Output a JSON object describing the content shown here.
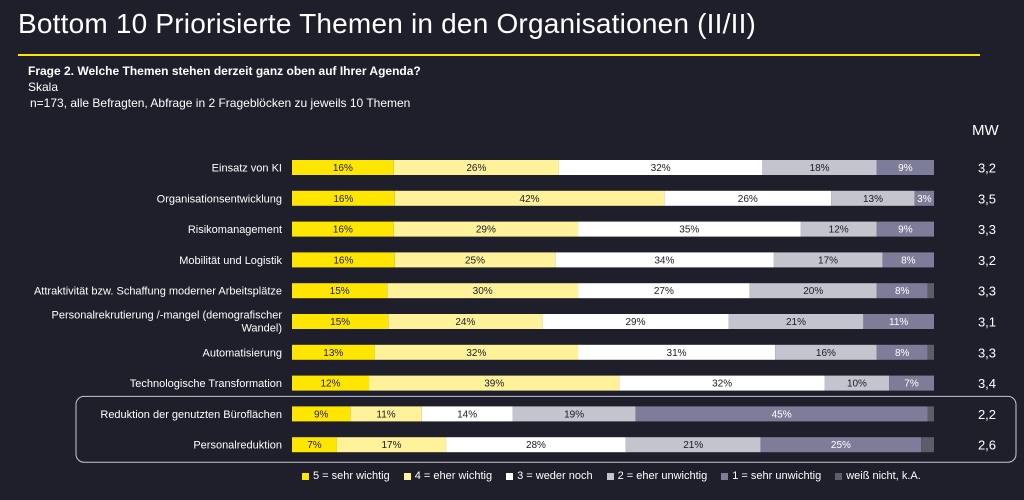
{
  "header": {
    "title": "Bottom 10 Priorisierte Themen in den Organisationen (II/II)",
    "question": "Frage 2. Welche Themen stehen derzeit ganz oben auf Ihrer Agenda?",
    "scale_label": "Skala",
    "sample": "n=173, alle Befragten, Abfrage in 2 Frageblöcken zu jeweils 10 Themen",
    "mw_label": "MW"
  },
  "colors": {
    "background": "#1f1f2b",
    "accent": "#ffe600"
  },
  "chart_data": {
    "type": "bar",
    "orientation": "horizontal-stacked-100",
    "categories": [
      "Einsatz von KI",
      "Organisationsentwicklung",
      "Risikomanagement",
      "Mobilität und Logistik",
      "Attraktivität bzw. Schaffung moderner Arbeitsplätze",
      "Personalrekrutierung /-mangel (demografischer Wandel)",
      "Automatisierung",
      "Technologische Transformation",
      "Reduktion der genutzten Büroflächen",
      "Personalreduktion"
    ],
    "series": [
      {
        "name": "5 = sehr wichtig",
        "color": "#ffe600",
        "text_color": "#1a1a24",
        "values": [
          16,
          16,
          16,
          16,
          15,
          15,
          13,
          12,
          9,
          7
        ]
      },
      {
        "name": "4 = eher wichtig",
        "color": "#fff29a",
        "text_color": "#1a1a24",
        "values": [
          26,
          42,
          29,
          25,
          30,
          24,
          32,
          39,
          11,
          17
        ]
      },
      {
        "name": "3 = weder noch",
        "color": "#ffffff",
        "text_color": "#1a1a24",
        "values": [
          32,
          26,
          35,
          34,
          27,
          29,
          31,
          32,
          14,
          28
        ]
      },
      {
        "name": "2 = eher unwichtig",
        "color": "#c4c4cf",
        "text_color": "#1a1a24",
        "values": [
          18,
          13,
          12,
          17,
          20,
          21,
          16,
          10,
          19,
          21
        ]
      },
      {
        "name": "1 = sehr unwichtig",
        "color": "#7d7d99",
        "text_color": "#ffffff",
        "values": [
          9,
          3,
          9,
          8,
          8,
          11,
          8,
          7,
          45,
          25
        ]
      },
      {
        "name": "weiß nicht, k.A.",
        "color": "#5c5c6b",
        "text_color": "#ffffff",
        "values": [
          0,
          0,
          0,
          0,
          1,
          0,
          1,
          0,
          1,
          2
        ]
      }
    ],
    "show_label_min": 3,
    "mean_values": [
      "3,2",
      "3,5",
      "3,3",
      "3,2",
      "3,3",
      "3,1",
      "3,3",
      "3,4",
      "2,2",
      "2,6"
    ],
    "highlighted_categories": [
      8,
      9
    ],
    "legend_position": "bottom",
    "grid": false
  }
}
